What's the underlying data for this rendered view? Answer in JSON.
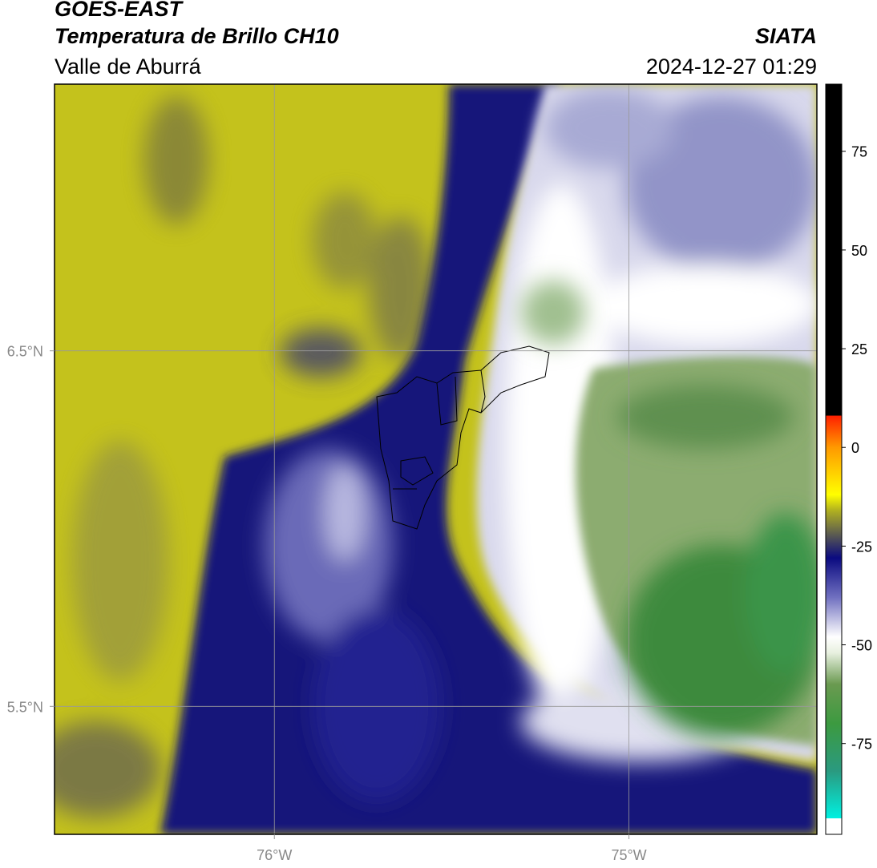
{
  "chart_data": {
    "type": "map",
    "title": "GOES-EAST",
    "subtitle": "Temperatura de Brillo CH10",
    "region": "Valle de Aburrá",
    "source": "SIATA",
    "timestamp": "2024-12-27 01:29",
    "xlim": [
      -76.62,
      -74.47
    ],
    "ylim": [
      5.14,
      7.25
    ],
    "xticks": [
      {
        "value": -76,
        "label": "76°W"
      },
      {
        "value": -75,
        "label": "75°W"
      }
    ],
    "yticks": [
      {
        "value": 6.5,
        "label": "6.5°N"
      },
      {
        "value": 5.5,
        "label": "5.5°N"
      }
    ],
    "grid": true,
    "colorbar": {
      "lim": [
        -98,
        92
      ],
      "ticks": [
        75,
        50,
        25,
        0,
        -25,
        -50,
        -75
      ],
      "colormap": [
        {
          "value": -98,
          "color": "#ffffff"
        },
        {
          "value": -94,
          "color": "#ffffff"
        },
        {
          "value": -93.9,
          "color": "#00f0e0"
        },
        {
          "value": -82,
          "color": "#2a9a80"
        },
        {
          "value": -70,
          "color": "#3c9a40"
        },
        {
          "value": -60,
          "color": "#6a9a50"
        },
        {
          "value": -52,
          "color": "#e8f0e0"
        },
        {
          "value": -48,
          "color": "#ffffff"
        },
        {
          "value": -38,
          "color": "#7070c0"
        },
        {
          "value": -28,
          "color": "#0a0a80"
        },
        {
          "value": -24,
          "color": "#404060"
        },
        {
          "value": -16,
          "color": "#b0b020"
        },
        {
          "value": -12,
          "color": "#ffff00"
        },
        {
          "value": 0,
          "color": "#ff9900"
        },
        {
          "value": 8,
          "color": "#ff2000"
        },
        {
          "value": 8.1,
          "color": "#000000"
        },
        {
          "value": 92,
          "color": "#000000"
        }
      ]
    }
  }
}
